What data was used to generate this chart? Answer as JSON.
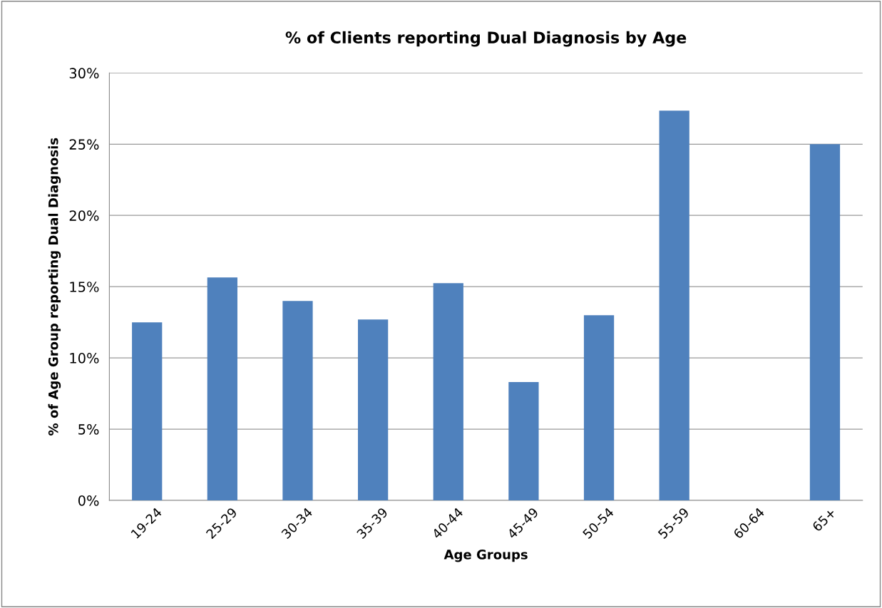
{
  "chart_data": {
    "type": "bar",
    "title": "% of Clients reporting Dual Diagnosis by Age",
    "xlabel": "Age Groups",
    "ylabel": "% of Age Group reporting Dual Diagnosis",
    "categories": [
      "19-24",
      "25-29",
      "30-34",
      "35-39",
      "40-44",
      "45-49",
      "50-54",
      "55-59",
      "60-64",
      "65+"
    ],
    "values": [
      12.5,
      15.65,
      14.0,
      12.7,
      15.25,
      8.3,
      13.0,
      27.35,
      0,
      25.0
    ],
    "color": "#4f81bd",
    "ylim": [
      0,
      30
    ],
    "yticks": [
      {
        "value": 0,
        "label": "0%"
      },
      {
        "value": 5,
        "label": "5%"
      },
      {
        "value": 10,
        "label": "10%"
      },
      {
        "value": 15,
        "label": "15%"
      },
      {
        "value": 20,
        "label": "20%"
      },
      {
        "value": 25,
        "label": "25%"
      },
      {
        "value": 30,
        "label": "30%"
      }
    ],
    "grid": "y",
    "legend": false
  }
}
